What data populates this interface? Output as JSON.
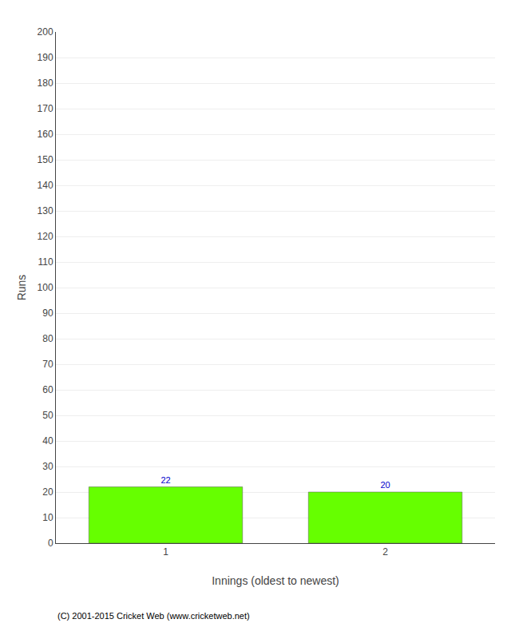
{
  "chart_data": {
    "type": "bar",
    "categories": [
      "1",
      "2"
    ],
    "values": [
      22,
      20
    ],
    "color": "#66ff00",
    "xlabel": "Innings (oldest to newest)",
    "ylabel": "Runs",
    "ylim": [
      0,
      200
    ],
    "yticks": [
      0,
      10,
      20,
      30,
      40,
      50,
      60,
      70,
      80,
      90,
      100,
      110,
      120,
      130,
      140,
      150,
      160,
      170,
      180,
      190,
      200
    ],
    "grid": true,
    "data_labels": true,
    "footer": "(C) 2001-2015 Cricket Web (www.cricketweb.net)"
  }
}
